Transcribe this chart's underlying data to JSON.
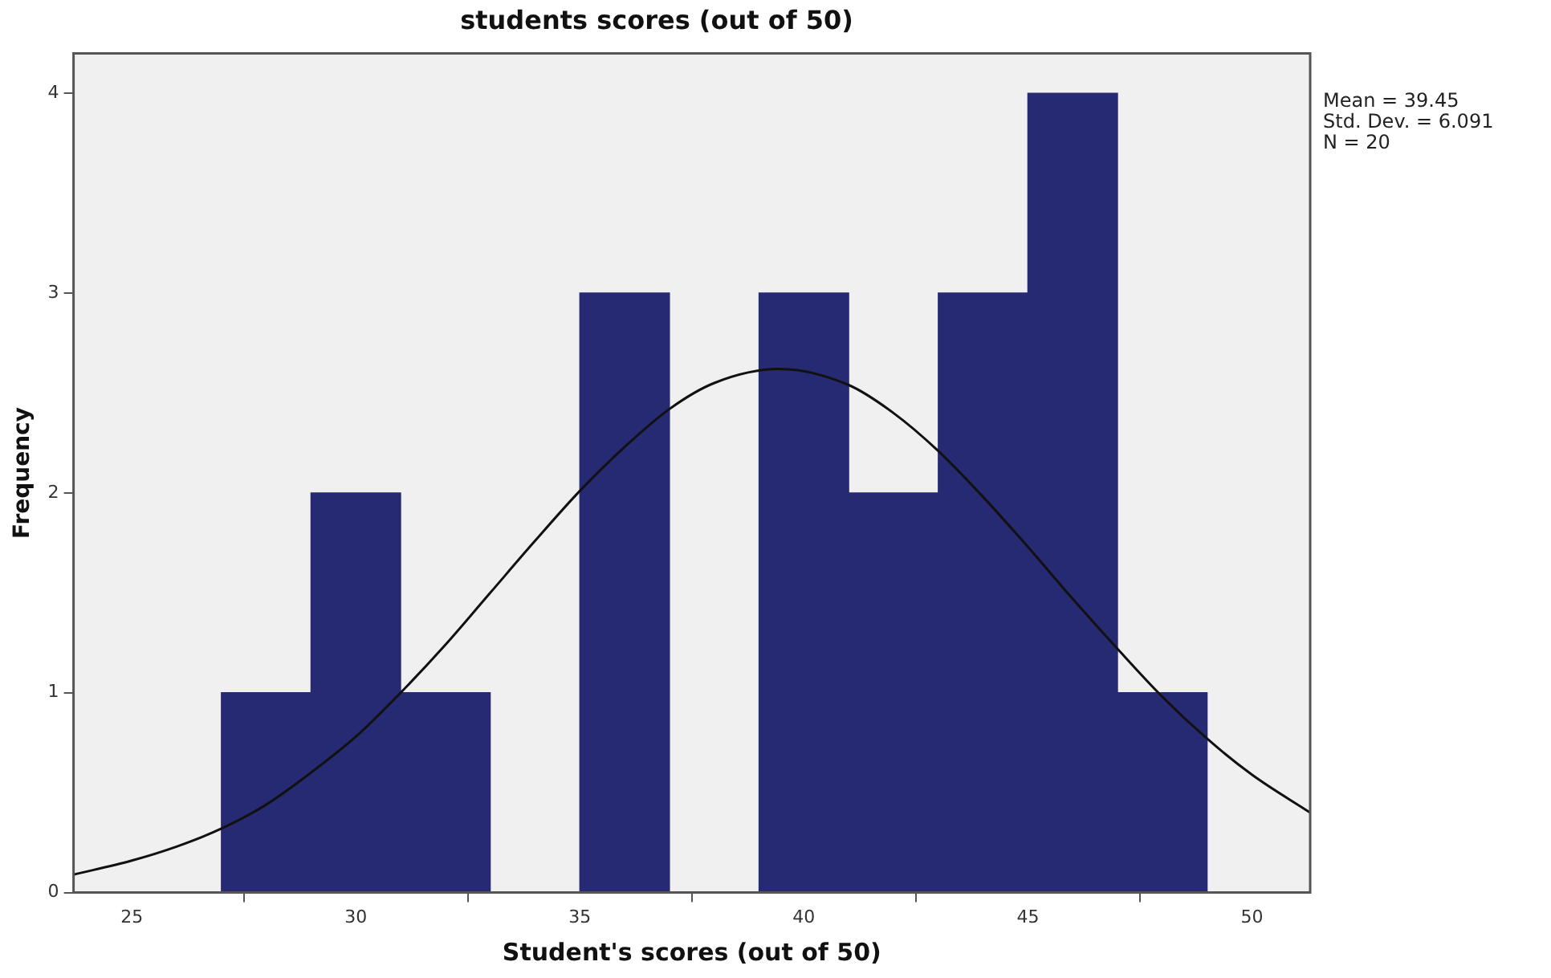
{
  "chart_data": {
    "type": "histogram",
    "title": "students scores (out of 50)",
    "xlabel": "Student's scores (out of 50)",
    "ylabel": "Frequency",
    "bins": [
      27,
      29,
      31,
      33,
      35,
      37,
      39,
      41,
      43,
      45,
      47,
      49
    ],
    "series": [
      {
        "color": "#262a72",
        "values": [
          1,
          2,
          1,
          0,
          3,
          0,
          3,
          2,
          3,
          4,
          1
        ]
      },
      {
        "type": "line",
        "color": "#111111",
        "x": [
          23.7,
          25,
          26,
          27,
          28,
          29,
          30,
          31,
          32,
          33,
          34,
          35,
          36,
          37,
          38,
          39.45,
          41,
          42,
          43,
          44,
          45,
          46,
          47,
          48,
          49,
          50,
          51.3
        ],
        "values": [
          0.09,
          0.16,
          0.23,
          0.32,
          0.44,
          0.6,
          0.78,
          1.0,
          1.24,
          1.5,
          1.76,
          2.01,
          2.23,
          2.42,
          2.55,
          2.62,
          2.54,
          2.4,
          2.21,
          1.98,
          1.73,
          1.47,
          1.22,
          0.98,
          0.77,
          0.59,
          0.4
        ]
      }
    ],
    "xlim": [
      23.7,
      51.3
    ],
    "xticks": [
      25,
      30,
      35,
      40,
      45,
      50
    ],
    "ylim": [
      0,
      4.2
    ],
    "yticks": [
      0,
      1,
      2,
      3,
      4
    ],
    "grid": false,
    "legend": false,
    "marker": "none",
    "line_style": "solid",
    "annotations": [
      "Mean = 39.45",
      "Std. Dev. = 6.091",
      "N = 20"
    ]
  }
}
